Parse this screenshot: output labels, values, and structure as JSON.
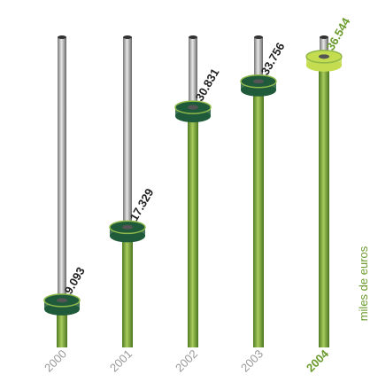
{
  "chart_data": {
    "type": "bar",
    "categories": [
      "2000",
      "2001",
      "2002",
      "2003",
      "2004"
    ],
    "values": [
      9093,
      17329,
      30831,
      33756,
      36544
    ],
    "value_labels": [
      "9.093",
      "17.329",
      "30.831",
      "33.756",
      "36.544"
    ],
    "unit_label": "miles de euros",
    "color": "#7ba23c",
    "disk_colors": [
      "#1f5a3a",
      "#1f5a3a",
      "#1f5a3a",
      "#1f5a3a",
      "#c4dc50"
    ],
    "label_colors": [
      "#222222",
      "#222222",
      "#222222",
      "#222222",
      "#6a9a2c"
    ],
    "category_colors": [
      "#999999",
      "#999999",
      "#999999",
      "#999999",
      "#6a9a2c"
    ]
  }
}
